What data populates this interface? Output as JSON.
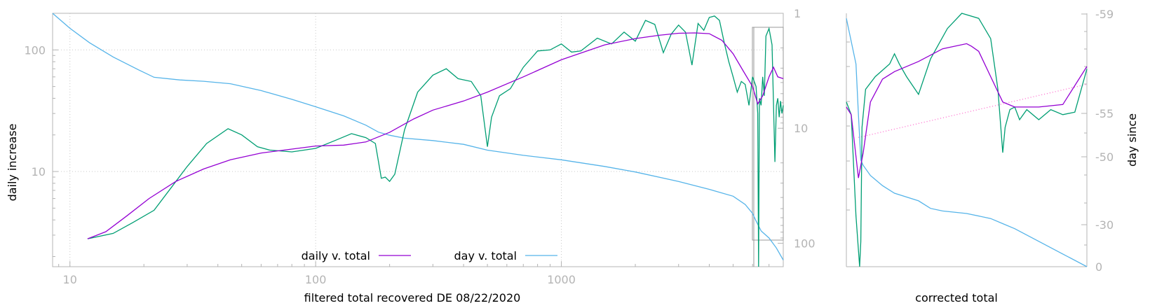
{
  "chart_data": [
    {
      "type": "line",
      "xlabel": "filtered total recovered DE 08/22/2020",
      "ylabel": "daily increase",
      "y2label": "",
      "x_scale": "log",
      "y_scale": "log",
      "y2_scale": "log",
      "xlim": [
        8.5,
        8000
      ],
      "ylim": [
        1.65,
        200
      ],
      "y2lim": [
        1,
        160
      ],
      "y2_inverted": true,
      "grid": true,
      "x_ticks": [
        10,
        100,
        1000
      ],
      "x_tick_labels": [
        "10",
        "100",
        "1000"
      ],
      "y_ticks": [
        10,
        100
      ],
      "y_tick_labels": [
        "10",
        "100"
      ],
      "y2_ticks": [
        1,
        10,
        100
      ],
      "y2_tick_labels": [
        "1",
        "10",
        "100"
      ],
      "legend_position": "bottom-center",
      "legend": [
        "daily v. total",
        "day v. total"
      ],
      "colors": {
        "daily_v_total": "#9400d3",
        "day_v_total": "#56b4e9",
        "raw_daily": "#009e73",
        "frame": "#b4b4b4",
        "inset": "#999999"
      },
      "series": [
        {
          "name": "daily v. total",
          "axis": "y",
          "color": "#9400d3",
          "x": [
            11.8,
            14,
            17,
            21,
            27,
            35,
            45,
            60,
            80,
            100,
            130,
            160,
            200,
            250,
            300,
            400,
            500,
            700,
            1000,
            1500,
            2000,
            2500,
            3000,
            3500,
            4000,
            4500,
            5000,
            5500,
            6000,
            6300,
            6600,
            7000,
            7300,
            7600,
            8000
          ],
          "values": [
            2.8,
            3.2,
            4.3,
            6.0,
            8.3,
            10.5,
            12.5,
            14.2,
            15.3,
            16.2,
            16.5,
            17.5,
            21,
            27,
            32,
            38,
            45,
            60,
            83,
            110,
            124,
            132,
            137,
            138,
            136,
            120,
            93,
            67,
            50,
            36,
            42,
            60,
            72,
            60,
            58
          ]
        },
        {
          "name": "raw daily",
          "axis": "y",
          "color": "#009e73",
          "x": [
            11.8,
            15,
            18,
            22,
            26,
            30,
            36,
            44,
            50,
            58,
            65,
            80,
            100,
            120,
            140,
            160,
            175,
            185,
            192,
            200,
            210,
            230,
            260,
            300,
            340,
            380,
            430,
            470,
            500,
            520,
            560,
            620,
            700,
            800,
            900,
            1000,
            1100,
            1200,
            1400,
            1600,
            1800,
            2000,
            2200,
            2400,
            2600,
            2800,
            3000,
            3200,
            3400,
            3600,
            3800,
            4000,
            4200,
            4400,
            4600,
            4800,
            5000,
            5200,
            5400,
            5600,
            5800,
            6000,
            6200,
            6300,
            6350,
            6400,
            6500,
            6600,
            6700,
            6800,
            7000,
            7200,
            7400,
            7500,
            7600,
            7700,
            7800,
            7900,
            8000
          ],
          "values": [
            2.8,
            3.1,
            3.8,
            4.8,
            7.5,
            11,
            17,
            22.5,
            20,
            16,
            15,
            14.5,
            15.5,
            18,
            20.5,
            19,
            17,
            8.8,
            9,
            8.3,
            9.5,
            22,
            45,
            62,
            70,
            58,
            55,
            42,
            16,
            28,
            42,
            48,
            72,
            98,
            100,
            112,
            96,
            98,
            125,
            112,
            140,
            118,
            175,
            162,
            95,
            135,
            160,
            140,
            75,
            165,
            145,
            185,
            190,
            175,
            115,
            80,
            60,
            45,
            55,
            52,
            35,
            60,
            50,
            30,
            0.9,
            40,
            35,
            60,
            42,
            130,
            150,
            110,
            12,
            35,
            40,
            28,
            38,
            30,
            35
          ]
        },
        {
          "name": "day v. total",
          "axis": "y2",
          "color": "#56b4e9",
          "x": [
            8.5,
            10,
            12,
            15,
            19,
            22,
            28,
            35,
            45,
            60,
            80,
            100,
            130,
            160,
            180,
            200,
            230,
            300,
            400,
            500,
            700,
            1000,
            1500,
            2000,
            3000,
            4000,
            5000,
            5600,
            6000,
            6200,
            6500,
            7000,
            7500,
            8000
          ],
          "values": [
            1,
            1.35,
            1.8,
            2.4,
            3.1,
            3.6,
            3.8,
            3.9,
            4.1,
            4.7,
            5.6,
            6.5,
            7.8,
            9.4,
            10.8,
            11.5,
            12.2,
            12.8,
            13.8,
            15.5,
            17.2,
            18.8,
            21.5,
            24,
            29,
            34,
            39,
            46,
            55,
            64,
            78,
            90,
            110,
            140
          ]
        }
      ]
    },
    {
      "type": "line",
      "xlabel": "corrected total",
      "ylabel": "",
      "y2label": "day since",
      "y2_ticks": [
        -59,
        -55,
        -50,
        -30,
        0
      ],
      "y2_tick_labels": [
        "-59",
        "-55",
        "-50",
        "-30",
        "0"
      ],
      "grid": false,
      "series": [
        {
          "name": "",
          "axis": "y",
          "color": "#9400d3",
          "x": [
            0,
            0.02,
            0.05,
            0.07,
            0.1,
            0.15,
            0.2,
            0.3,
            0.4,
            0.5,
            0.52,
            0.55,
            0.6,
            0.65,
            0.7,
            0.75,
            0.8,
            0.9,
            1.0
          ],
          "values": [
            63,
            60,
            35,
            45,
            65,
            74,
            77,
            81,
            86,
            88,
            87,
            85,
            75,
            65,
            63,
            63,
            63,
            64,
            79
          ]
        },
        {
          "name": "",
          "axis": "y",
          "color": "#009e73",
          "x": [
            0,
            0.02,
            0.04,
            0.055,
            0.06,
            0.065,
            0.08,
            0.12,
            0.18,
            0.2,
            0.22,
            0.25,
            0.3,
            0.35,
            0.42,
            0.48,
            0.55,
            0.6,
            0.63,
            0.65,
            0.66,
            0.68,
            0.7,
            0.72,
            0.75,
            0.8,
            0.85,
            0.9,
            0.95,
            1.0
          ],
          "values": [
            65,
            60,
            20,
            0,
            10,
            55,
            70,
            75,
            80,
            84,
            80,
            75,
            68,
            82,
            94,
            100,
            98,
            90,
            70,
            45,
            55,
            62,
            63,
            58,
            62,
            58,
            62,
            60,
            61,
            78
          ]
        },
        {
          "name": "",
          "axis": "y",
          "color": "#ff66cc",
          "dashed": true,
          "x": [
            0.05,
            1.0
          ],
          "values": [
            51,
            72
          ]
        },
        {
          "name": "",
          "axis": "y2",
          "color": "#56b4e9",
          "x": [
            0,
            0.04,
            0.05,
            0.06,
            0.07,
            0.1,
            0.15,
            0.2,
            0.3,
            0.35,
            0.4,
            0.5,
            0.6,
            0.65,
            0.7,
            0.8,
            0.9,
            1.0
          ],
          "values": [
            98,
            80,
            60,
            42,
            40,
            36,
            32,
            29,
            26,
            23,
            22,
            21,
            19,
            17,
            15,
            10,
            5,
            0
          ]
        }
      ]
    }
  ]
}
